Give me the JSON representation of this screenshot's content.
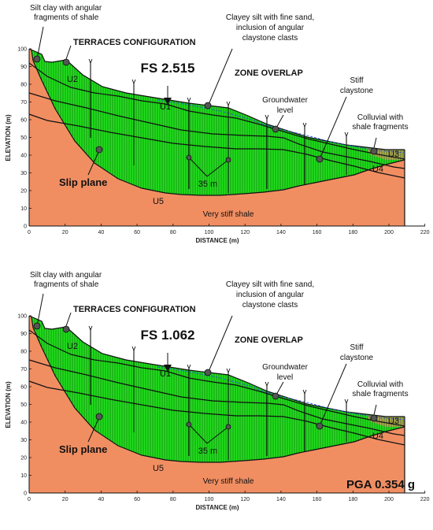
{
  "axes": {
    "x_label": "DISTANCE (m)",
    "y_label": "ELEVATION (m)",
    "x_ticks": [
      "0",
      "20",
      "40",
      "60",
      "80",
      "100",
      "120",
      "140",
      "160",
      "180",
      "200",
      "220"
    ],
    "y_ticks": [
      "100",
      "90",
      "80",
      "70",
      "60",
      "50",
      "40",
      "30",
      "20",
      "10",
      "0"
    ]
  },
  "annotations": {
    "silt_clay": [
      "Silt clay with angular",
      "fragments of shale"
    ],
    "terraces": "TERRACES CONFIGURATION",
    "clayey_silt": [
      "Clayey silt with fine sand,",
      "inclusion of angular",
      "claystone clasts"
    ],
    "zone_overlap": "ZONE OVERLAP",
    "stiff_claystone": [
      "Stiff",
      "claystone"
    ],
    "groundwater": [
      "Groundwater",
      "level"
    ],
    "colluvial": [
      "Colluvial with",
      "shale fragments"
    ],
    "slip_plane": "Slip plane",
    "spacing": "35 m",
    "very_stiff_shale": "Very stiff shale"
  },
  "units": {
    "u1": "U1",
    "u2": "U2",
    "u3": "U3",
    "u4": "U4",
    "u5": "U5"
  },
  "panels": [
    {
      "fs_label": "FS 2.515",
      "pga_label": ""
    },
    {
      "fs_label": "FS 1.062",
      "pga_label": "PGA 0.354 g"
    }
  ],
  "colors": {
    "green": "#22e31e",
    "orange": "#f08e62",
    "olive": "#b6a957",
    "outline": "#111111",
    "water": "#2b54e8"
  }
}
